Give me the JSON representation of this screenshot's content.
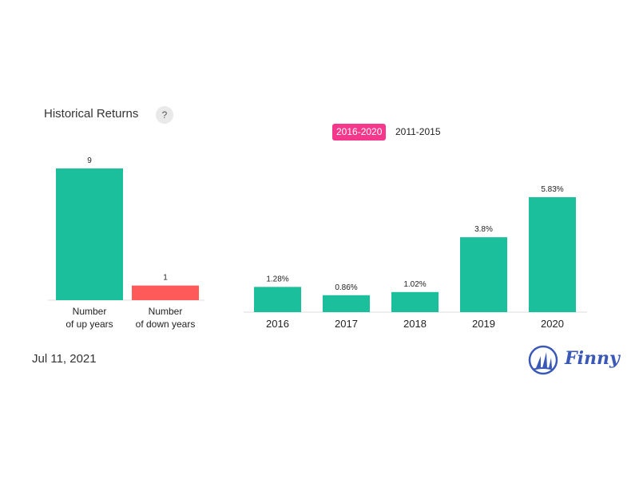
{
  "header": {
    "title": "Historical Returns",
    "help_label": "?"
  },
  "tabs": [
    {
      "label": "2016-2020",
      "active": true
    },
    {
      "label": "2011-2015",
      "active": false
    }
  ],
  "footer": {
    "date": "Jul 11, 2021",
    "brand": "Finny"
  },
  "colors": {
    "up": "#1cbf9c",
    "down": "#ff5a5a",
    "accent": "#f5388c",
    "brand": "#3a58b8"
  },
  "chart_data": [
    {
      "type": "bar",
      "categories": [
        [
          "Number",
          "of up years"
        ],
        [
          "Number",
          "of down years"
        ]
      ],
      "values": [
        9,
        1
      ],
      "data_labels": [
        "9",
        "1"
      ],
      "colors": [
        "#1cbf9c",
        "#ff5a5a"
      ]
    },
    {
      "type": "bar",
      "categories": [
        "2016",
        "2017",
        "2018",
        "2019",
        "2020"
      ],
      "values": [
        1.28,
        0.86,
        1.02,
        3.8,
        5.83
      ],
      "data_labels": [
        "1.28%",
        "0.86%",
        "1.02%",
        "3.8%",
        "5.83%"
      ],
      "unit": "%",
      "color": "#1cbf9c"
    }
  ]
}
